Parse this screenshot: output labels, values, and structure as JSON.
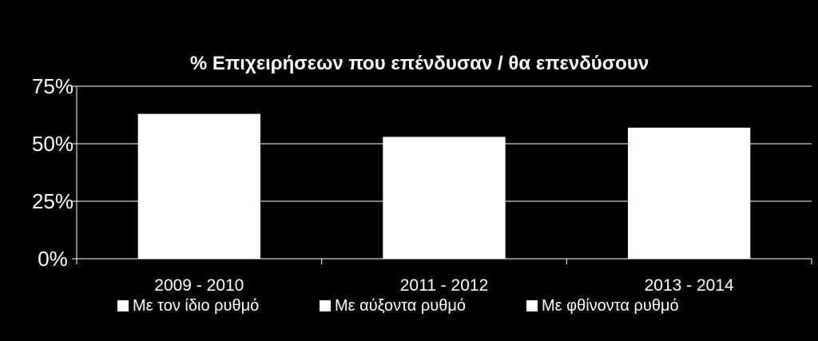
{
  "chart_data": {
    "type": "bar",
    "title": "% Επιχειρήσεων που επένδυσαν / θα επενδύσουν",
    "xlabel": "",
    "ylabel": "",
    "categories": [
      "2009 - 2010",
      "2011 - 2012",
      "2013 - 2014"
    ],
    "series": [
      {
        "values": [
          63,
          53,
          57
        ],
        "color": "#ffffff"
      }
    ],
    "ylim": [
      0,
      75
    ],
    "yticks": [
      0,
      25,
      50,
      75
    ],
    "ytick_labels": [
      "0%",
      "25%",
      "50%",
      "75%"
    ],
    "grid": true,
    "legend_position": "bottom",
    "legend": [
      {
        "label": "Με τον ίδιο ρυθμό",
        "color": "#ffffff"
      },
      {
        "label": "Με αύξοντα ρυθμό",
        "color": "#ffffff"
      },
      {
        "label": "Με φθίνοντα ρυθμό",
        "color": "#ffffff"
      }
    ],
    "background": "#000000",
    "gridline_color": "#ffffff"
  }
}
